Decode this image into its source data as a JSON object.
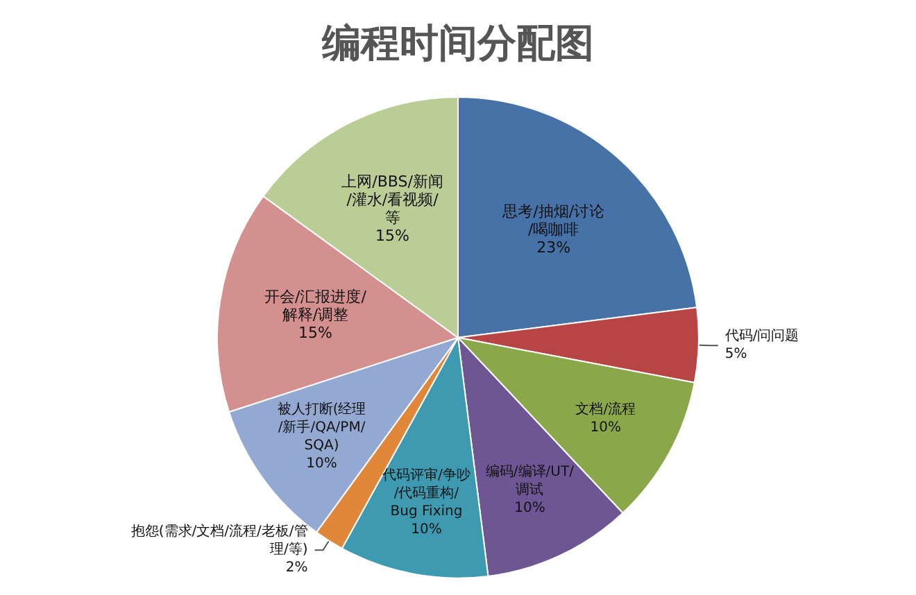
{
  "chart_data": {
    "type": "pie",
    "title": "编程时间分配图",
    "categories": [
      "思考/抽烟/讨论/喝咖啡",
      "代码/问问题",
      "文档/流程",
      "编码/编译/UT/调试",
      "代码评审/争吵/代码重构/Bug Fixing",
      "抱怨(需求/文档/流程/老板/管理/等)",
      "被人打断(经理/新手/QA/PM/SQA)",
      "开会/汇报进度/解释/调整",
      "上网/BBS/新闻/灌水/看视频/等"
    ],
    "values": [
      23,
      5,
      10,
      10,
      10,
      2,
      10,
      15,
      15
    ],
    "value_labels": [
      "23%",
      "5%",
      "10%",
      "10%",
      "10%",
      "2%",
      "10%",
      "15%",
      "15%"
    ],
    "colors": [
      "#4672a8",
      "#b84545",
      "#8aa84a",
      "#6e5593",
      "#3d9ab0",
      "#e0873a",
      "#93a9d2",
      "#d4908e",
      "#b9cd94"
    ],
    "legend": false
  }
}
